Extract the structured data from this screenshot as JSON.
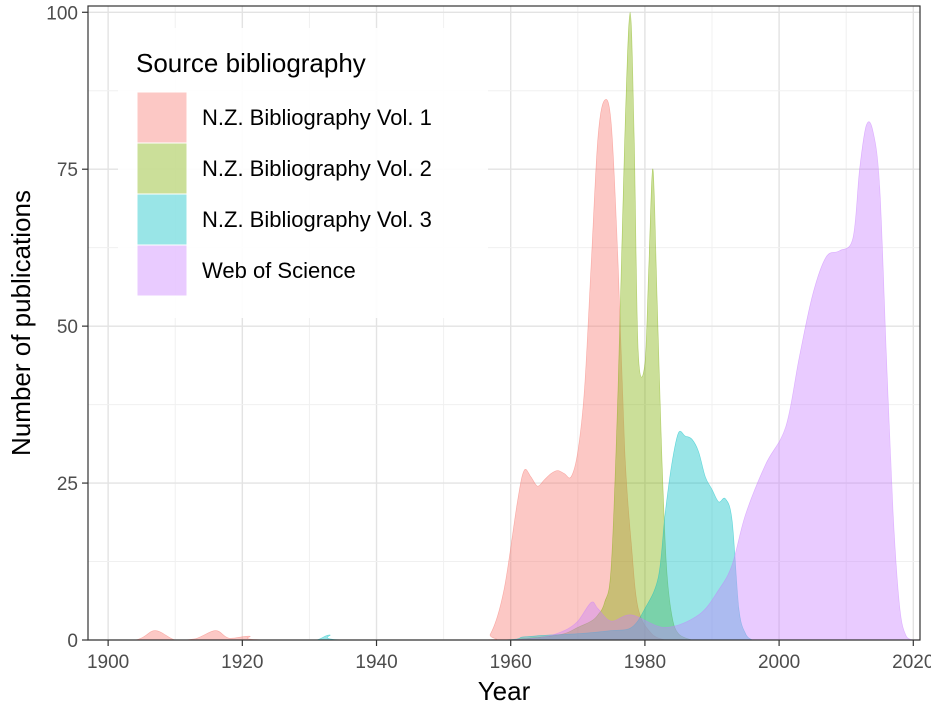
{
  "chart_data": {
    "type": "area",
    "xlabel": "Year",
    "ylabel": "Number of publications",
    "xlim": [
      1897,
      2021
    ],
    "ylim": [
      0,
      101
    ],
    "x_ticks": [
      1900,
      1920,
      1940,
      1960,
      1980,
      2000,
      2020
    ],
    "y_ticks": [
      0,
      25,
      50,
      75,
      100
    ],
    "grid": true,
    "legend": {
      "title": "Source bibliography",
      "position": "top-left"
    },
    "series": [
      {
        "name": "N.Z. Bibliography Vol. 1",
        "color": "#F8766D",
        "points": [
          [
            1897,
            0
          ],
          [
            1904,
            0
          ],
          [
            1907,
            1.5
          ],
          [
            1910,
            0
          ],
          [
            1913,
            0.2
          ],
          [
            1916,
            1.5
          ],
          [
            1918,
            0.3
          ],
          [
            1921,
            0.6
          ],
          [
            1924,
            0
          ],
          [
            1955,
            0
          ],
          [
            1957,
            1
          ],
          [
            1959,
            8
          ],
          [
            1961,
            22
          ],
          [
            1962,
            27
          ],
          [
            1963,
            26
          ],
          [
            1964,
            24.5
          ],
          [
            1965,
            25.5
          ],
          [
            1966,
            26.5
          ],
          [
            1967,
            27
          ],
          [
            1968,
            26.5
          ],
          [
            1969,
            26
          ],
          [
            1970,
            30
          ],
          [
            1971,
            40
          ],
          [
            1972,
            60
          ],
          [
            1973,
            80
          ],
          [
            1974,
            86
          ],
          [
            1975,
            82
          ],
          [
            1976,
            60
          ],
          [
            1977,
            30
          ],
          [
            1978,
            15
          ],
          [
            1979,
            5
          ],
          [
            1981,
            1
          ],
          [
            1983,
            0
          ]
        ]
      },
      {
        "name": "N.Z. Bibliography Vol. 2",
        "color": "#7CAE00",
        "points": [
          [
            1960,
            0
          ],
          [
            1965,
            0.5
          ],
          [
            1968,
            1
          ],
          [
            1970,
            2
          ],
          [
            1972,
            3
          ],
          [
            1973,
            4
          ],
          [
            1974,
            6
          ],
          [
            1975,
            12
          ],
          [
            1976,
            40
          ],
          [
            1977,
            80
          ],
          [
            1977.8,
            100
          ],
          [
            1978.4,
            80
          ],
          [
            1979,
            46
          ],
          [
            1980,
            44
          ],
          [
            1980.6,
            60
          ],
          [
            1981.2,
            75
          ],
          [
            1981.8,
            55
          ],
          [
            1982.5,
            30
          ],
          [
            1983.2,
            12
          ],
          [
            1984,
            4
          ],
          [
            1985,
            1
          ],
          [
            1987,
            0
          ]
        ]
      },
      {
        "name": "N.Z. Bibliography Vol. 3",
        "color": "#00BFC4",
        "points": [
          [
            1928,
            0
          ],
          [
            1931,
            0
          ],
          [
            1933,
            0.8
          ],
          [
            1935,
            0
          ],
          [
            1958,
            0
          ],
          [
            1962,
            0.5
          ],
          [
            1966,
            0.8
          ],
          [
            1970,
            1
          ],
          [
            1975,
            1.5
          ],
          [
            1978,
            2
          ],
          [
            1980,
            5
          ],
          [
            1982,
            10
          ],
          [
            1983,
            20
          ],
          [
            1984,
            28
          ],
          [
            1985,
            33
          ],
          [
            1986,
            32.5
          ],
          [
            1987,
            32
          ],
          [
            1988,
            30
          ],
          [
            1989,
            26
          ],
          [
            1990,
            24
          ],
          [
            1991,
            22
          ],
          [
            1992,
            22.5
          ],
          [
            1993,
            19
          ],
          [
            1994,
            5
          ],
          [
            1995,
            1
          ],
          [
            1996,
            0
          ]
        ]
      },
      {
        "name": "Web of Science",
        "color": "#C77CFF",
        "points": [
          [
            1960,
            0
          ],
          [
            1965,
            0.5
          ],
          [
            1968,
            1.5
          ],
          [
            1970,
            3
          ],
          [
            1972,
            6
          ],
          [
            1973,
            5
          ],
          [
            1975,
            3
          ],
          [
            1978,
            4
          ],
          [
            1983,
            2
          ],
          [
            1988,
            4
          ],
          [
            1991,
            8
          ],
          [
            1993,
            12
          ],
          [
            1995,
            20
          ],
          [
            1998,
            28
          ],
          [
            2001,
            34
          ],
          [
            2003,
            45
          ],
          [
            2005,
            55
          ],
          [
            2007,
            61
          ],
          [
            2009,
            62
          ],
          [
            2011,
            64
          ],
          [
            2012,
            75
          ],
          [
            2013,
            82
          ],
          [
            2014,
            81
          ],
          [
            2015,
            72
          ],
          [
            2016,
            45
          ],
          [
            2017,
            20
          ],
          [
            2018,
            5
          ],
          [
            2019,
            0.5
          ],
          [
            2020,
            0
          ]
        ]
      }
    ]
  }
}
